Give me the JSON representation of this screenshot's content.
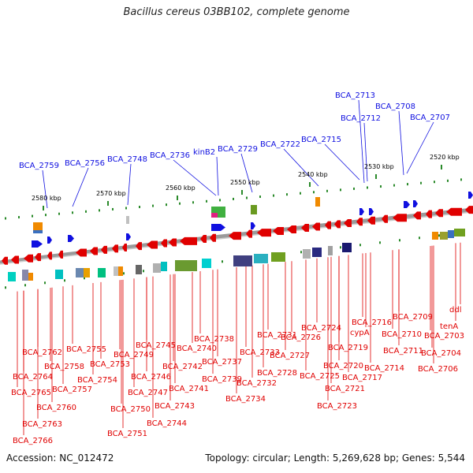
{
  "title": "Bacillus cereus 03BB102, complete genome",
  "footer": {
    "accession": "Accession: NC_012472",
    "summary": "Topology: circular; Length: 5,269,628 bp; Genes: 5,544"
  },
  "colors": {
    "top_gene": "#1010e0",
    "bottom_gene": "#e00000",
    "backbone": "#888888",
    "tick": "#2a8a2a"
  },
  "scale_labels": [
    "2580 kbp",
    "2570 kbp",
    "2560 kbp",
    "2550 kbp",
    "2540 kbp",
    "2530 kbp",
    "2520 kbp"
  ],
  "top_labels": [
    "BCA_2759",
    "BCA_2756",
    "BCA_2748",
    "BCA_2736",
    "kinB2",
    "BCA_2729",
    "BCA_2722",
    "BCA_2715",
    "BCA_2712",
    "BCA_2713",
    "BCA_2708",
    "BCA_2707"
  ],
  "bottom_labels": [
    "BCA_2762",
    "BCA_2764",
    "BCA_2765",
    "BCA_2763",
    "BCA_2766",
    "BCA_2758",
    "BCA_2760",
    "BCA_2757",
    "BCA_2755",
    "BCA_2754",
    "BCA_2753",
    "BCA_2749",
    "BCA_2751",
    "BCA_2750",
    "BCA_2747",
    "BCA_2746",
    "BCA_2745",
    "BCA_2744",
    "BCA_2743",
    "BCA_2742",
    "BCA_2741",
    "BCA_2740",
    "BCA_2739",
    "BCA_2738",
    "BCA_2737",
    "BCA_2734",
    "BCA_2733",
    "BCA_2732",
    "BCA_2731",
    "BCA_2728",
    "BCA_2727",
    "BCA_2726",
    "BCA_2725",
    "BCA_2724",
    "BCA_2723",
    "BCA_2721",
    "BCA_2720",
    "BCA_2719",
    "BCA_2717",
    "cypA",
    "BCA_2716",
    "BCA_2714",
    "BCA_2711",
    "BCA_2710",
    "BCA_2709",
    "BCA_2706",
    "BCA_2704",
    "BCA_2703",
    "tenA",
    "ddl"
  ]
}
